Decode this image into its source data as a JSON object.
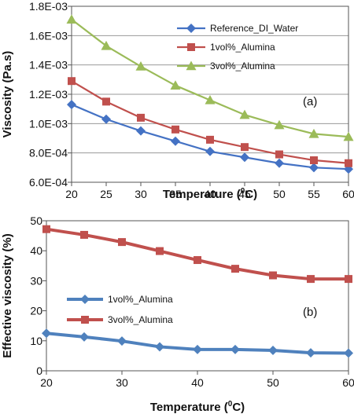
{
  "chart_data": [
    {
      "type": "line",
      "panel_label": "(a)",
      "xlabel": "Temperature (",
      "xlabel_sup": "0",
      "xlabel_end": "C)",
      "ylabel": "Viscosity (Pa.s)",
      "xlim": [
        20,
        60
      ],
      "ylim": [
        0.0006,
        0.0018
      ],
      "x_ticks": [
        20,
        25,
        30,
        35,
        40,
        45,
        50,
        55,
        60
      ],
      "x_tick_labels": [
        "20",
        "25",
        "30",
        "35",
        "40",
        "45",
        "50",
        "55",
        "60"
      ],
      "y_ticks": [
        0.0006,
        0.0008,
        0.001,
        0.0012,
        0.0014,
        0.0016,
        0.0018
      ],
      "y_tick_labels": [
        "6.0E-04",
        "8.0E-04",
        "1.0E-03",
        "1.2E-03",
        "1.4E-03",
        "1.6E-03",
        "1.8E-03"
      ],
      "grid": true,
      "legend_position": "top-right",
      "x": [
        20,
        25,
        30,
        35,
        40,
        45,
        50,
        55,
        60
      ],
      "series": [
        {
          "name": "Reference_DI_Water",
          "color": "#4472C4",
          "marker": "diamond",
          "values": [
            0.00113,
            0.00103,
            0.00095,
            0.00088,
            0.00081,
            0.00077,
            0.00073,
            0.0007,
            0.00069
          ]
        },
        {
          "name": "1vol%_Alumina",
          "color": "#C0504D",
          "marker": "square",
          "values": [
            0.00129,
            0.00115,
            0.00104,
            0.00096,
            0.00089,
            0.00084,
            0.00079,
            0.00075,
            0.00073
          ]
        },
        {
          "name": "3vol%_Alumina",
          "color": "#9BBB59",
          "marker": "triangle",
          "values": [
            0.00171,
            0.00153,
            0.00139,
            0.00126,
            0.00116,
            0.00106,
            0.00099,
            0.00093,
            0.00091
          ]
        }
      ]
    },
    {
      "type": "line",
      "panel_label": "(b)",
      "xlabel": "Temperature (",
      "xlabel_sup": "0",
      "xlabel_end": "C)",
      "ylabel": "Effective viscosity (%)",
      "xlim": [
        20,
        60
      ],
      "ylim": [
        0,
        50
      ],
      "x_ticks": [
        20,
        30,
        40,
        50,
        60
      ],
      "x_tick_labels": [
        "20",
        "30",
        "40",
        "50",
        "60"
      ],
      "y_ticks": [
        0,
        10,
        20,
        30,
        40,
        50
      ],
      "y_tick_labels": [
        "0",
        "10",
        "20",
        "30",
        "40",
        "50"
      ],
      "grid": false,
      "legend_position": "center-left",
      "x": [
        20,
        25,
        30,
        35,
        40,
        45,
        50,
        55,
        60
      ],
      "series": [
        {
          "name": "1vol%_Alumina",
          "color": "#4F81BD",
          "marker": "diamond",
          "values": [
            12.5,
            11.3,
            9.9,
            8.0,
            7.1,
            7.1,
            6.8,
            6.0,
            5.9
          ]
        },
        {
          "name": "3vol%_Alumina",
          "color": "#C0504D",
          "marker": "square",
          "values": [
            47.2,
            45.3,
            42.9,
            39.9,
            36.9,
            34.0,
            31.8,
            30.6,
            30.6
          ]
        }
      ]
    }
  ]
}
